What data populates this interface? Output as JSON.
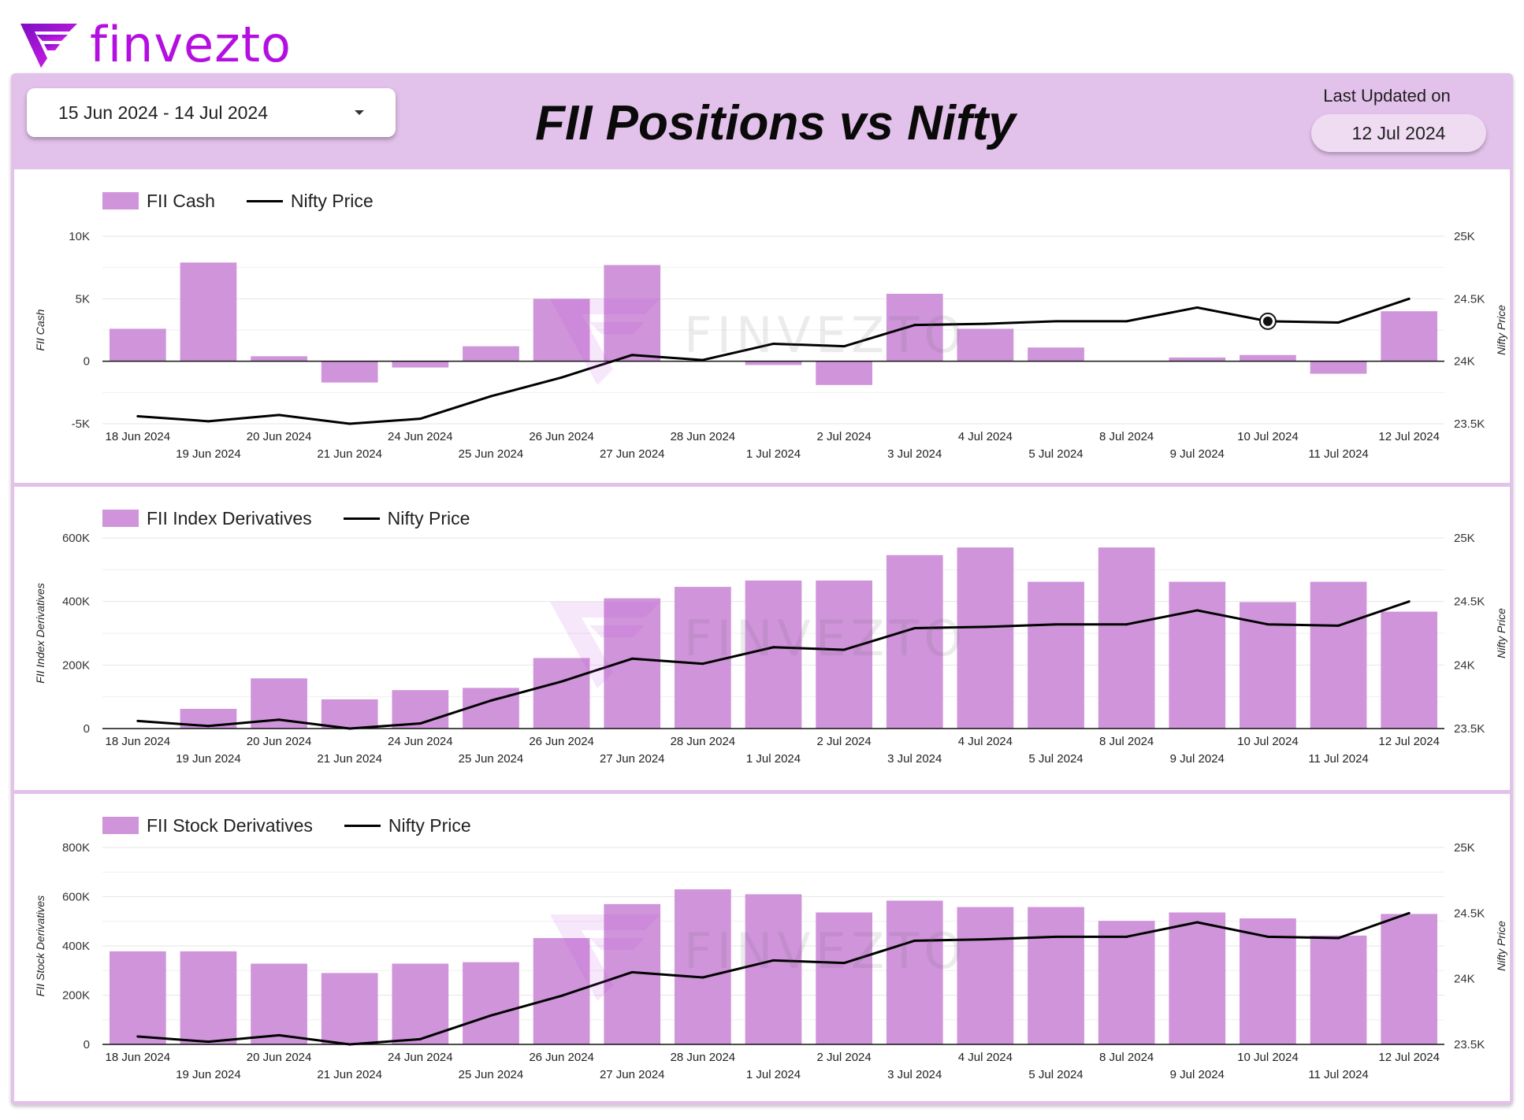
{
  "brand": {
    "name": "finvezto",
    "logo_icon": "finvezto-logo-icon",
    "color": "#b40fe0"
  },
  "header": {
    "title": "FII Positions vs Nifty",
    "date_range": "15 Jun 2024 - 14 Jul 2024",
    "last_updated_label": "Last Updated on",
    "last_updated_value": "12 Jul 2024"
  },
  "colors": {
    "frame": "#e2c1ea",
    "bar": "#cf94da",
    "line": "#000000"
  },
  "watermark": "FINVEZTO",
  "chart_data": [
    {
      "type": "bar",
      "categories": [
        "18 Jun 2024",
        "19 Jun 2024",
        "20 Jun 2024",
        "21 Jun 2024",
        "24 Jun 2024",
        "25 Jun 2024",
        "26 Jun 2024",
        "27 Jun 2024",
        "28 Jun 2024",
        "1 Jul 2024",
        "2 Jul 2024",
        "3 Jul 2024",
        "4 Jul 2024",
        "5 Jul 2024",
        "8 Jul 2024",
        "9 Jul 2024",
        "10 Jul 2024",
        "11 Jul 2024",
        "12 Jul 2024"
      ],
      "series": [
        {
          "name": "FII Cash",
          "type": "bar",
          "axis": "left",
          "values": [
            2600,
            7900,
            400,
            -1700,
            -500,
            1200,
            5000,
            7700,
            0,
            -300,
            -1900,
            5400,
            2600,
            1100,
            0,
            300,
            500,
            -1000,
            4000
          ]
        },
        {
          "name": "Nifty Price",
          "type": "line",
          "axis": "right",
          "values": [
            23560,
            23520,
            23570,
            23500,
            23540,
            23720,
            23870,
            24050,
            24010,
            24140,
            24120,
            24290,
            24300,
            24320,
            24320,
            24430,
            24320,
            24310,
            24500
          ]
        }
      ],
      "y_left": {
        "label": "FII Cash",
        "min": -5000,
        "max": 10000,
        "ticks": [
          -5000,
          0,
          5000,
          10000
        ],
        "tick_labels": [
          "-5K",
          "0",
          "5K",
          "10K"
        ]
      },
      "y_right": {
        "label": "Nifty Price",
        "min": 23500,
        "max": 25000,
        "ticks": [
          23500,
          24000,
          24500,
          25000
        ],
        "tick_labels": [
          "23.5K",
          "24K",
          "24.5K",
          "25K"
        ]
      },
      "highlight_point": {
        "series": "Nifty Price",
        "category": "10 Jul 2024"
      },
      "grid": true,
      "legend_position": "top-left"
    },
    {
      "type": "bar",
      "categories": [
        "18 Jun 2024",
        "19 Jun 2024",
        "20 Jun 2024",
        "21 Jun 2024",
        "24 Jun 2024",
        "25 Jun 2024",
        "26 Jun 2024",
        "27 Jun 2024",
        "28 Jun 2024",
        "1 Jul 2024",
        "2 Jul 2024",
        "3 Jul 2024",
        "4 Jul 2024",
        "5 Jul 2024",
        "8 Jul 2024",
        "9 Jul 2024",
        "10 Jul 2024",
        "11 Jul 2024",
        "12 Jul 2024"
      ],
      "series": [
        {
          "name": "FII Index Derivatives",
          "type": "bar",
          "axis": "left",
          "values": [
            0,
            62000,
            158000,
            92000,
            121000,
            128000,
            222000,
            410000,
            446000,
            466000,
            466000,
            546000,
            570000,
            462000,
            570000,
            462000,
            398000,
            462000,
            368000
          ]
        },
        {
          "name": "Nifty Price",
          "type": "line",
          "axis": "right",
          "values": [
            23560,
            23520,
            23570,
            23500,
            23540,
            23720,
            23870,
            24050,
            24010,
            24140,
            24120,
            24290,
            24300,
            24320,
            24320,
            24430,
            24320,
            24310,
            24500
          ]
        }
      ],
      "y_left": {
        "label": "FII Index Derivatives",
        "min": 0,
        "max": 600000,
        "ticks": [
          0,
          200000,
          400000,
          600000
        ],
        "tick_labels": [
          "0",
          "200K",
          "400K",
          "600K"
        ]
      },
      "y_right": {
        "label": "Nifty Price",
        "min": 23500,
        "max": 25000,
        "ticks": [
          23500,
          24000,
          24500,
          25000
        ],
        "tick_labels": [
          "23.5K",
          "24K",
          "24.5K",
          "25K"
        ]
      },
      "grid": true,
      "legend_position": "top-left"
    },
    {
      "type": "bar",
      "categories": [
        "18 Jun 2024",
        "19 Jun 2024",
        "20 Jun 2024",
        "21 Jun 2024",
        "24 Jun 2024",
        "25 Jun 2024",
        "26 Jun 2024",
        "27 Jun 2024",
        "28 Jun 2024",
        "1 Jul 2024",
        "2 Jul 2024",
        "3 Jul 2024",
        "4 Jul 2024",
        "5 Jul 2024",
        "8 Jul 2024",
        "9 Jul 2024",
        "10 Jul 2024",
        "11 Jul 2024",
        "12 Jul 2024"
      ],
      "series": [
        {
          "name": "FII Stock Derivatives",
          "type": "bar",
          "axis": "left",
          "values": [
            378000,
            378000,
            328000,
            290000,
            328000,
            334000,
            432000,
            570000,
            630000,
            610000,
            536000,
            584000,
            558000,
            558000,
            502000,
            536000,
            512000,
            442000,
            530000
          ]
        },
        {
          "name": "Nifty Price",
          "type": "line",
          "axis": "right",
          "values": [
            23560,
            23520,
            23570,
            23500,
            23540,
            23720,
            23870,
            24050,
            24010,
            24140,
            24120,
            24290,
            24300,
            24320,
            24320,
            24430,
            24320,
            24310,
            24500
          ]
        }
      ],
      "y_left": {
        "label": "FII Stock Derivatives",
        "min": 0,
        "max": 800000,
        "ticks": [
          0,
          200000,
          400000,
          600000,
          800000
        ],
        "tick_labels": [
          "0",
          "200K",
          "400K",
          "600K",
          "800K"
        ]
      },
      "y_right": {
        "label": "Nifty Price",
        "min": 23500,
        "max": 25000,
        "ticks": [
          23500,
          24000,
          24500,
          25000
        ],
        "tick_labels": [
          "23.5K",
          "24K",
          "24.5K",
          "25K"
        ]
      },
      "grid": true,
      "legend_position": "top-left"
    }
  ]
}
